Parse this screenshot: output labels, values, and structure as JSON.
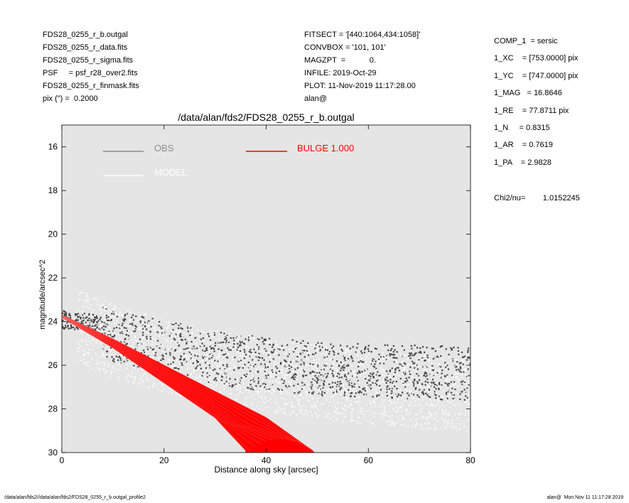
{
  "header_left": [
    "FDS28_0255_r_b.outgal",
    "FDS28_0255_r_data.fits",
    "FDS28_0255_r_sigma.fits",
    "PSF     = psf_r28_over2.fits",
    "FDS28_0255_r_finmask.fits",
    "pix (\") =  0.2000"
  ],
  "header_mid": [
    "FITSECT = '[440:1064,434:1058]'",
    "CONVBOX = '101, 101'",
    "MAGZPT  =           0.",
    "INFILE: 2019-Oct-29",
    "PLOT: 11-Nov-2019 11:17:28.00",
    "alan@"
  ],
  "header_right": [
    "COMP_1  = sersic",
    "1_XC    = [753.0000] pix",
    "1_YC    = [747.0000] pix",
    "1_MAG   = 16.8646",
    "1_RE    = 77.8711 pix",
    "1_N     = 0.8315",
    "1_AR    = 0.7619",
    "1_PA    = 2.9828"
  ],
  "chi2": "Chi2/nu=        1.0152245",
  "footer_left": "/data/alan/fds2//data/alan/fds2/FDS28_0255_r_b.outgal_profile2",
  "footer_right": "alan@  Mon Nov 11 11:17:28 2019",
  "colors": {
    "background_plot": "#e5e5e5",
    "obs": "#444444",
    "obs_legend": "#8c8c8c",
    "model": "#ffffff",
    "bulge": "#ff0000"
  },
  "chart_data": {
    "type": "scatter",
    "title": "/data/alan/fds2/FDS28_0255_r_b.outgal",
    "xlabel": "Distance along sky [arcsec]",
    "ylabel": "magnitude/arcsec^2",
    "xlim": [
      0,
      80
    ],
    "ylim": [
      30,
      15
    ],
    "y_inverted": true,
    "xticks": [
      0,
      20,
      40,
      60,
      80
    ],
    "yticks": [
      16,
      18,
      20,
      22,
      24,
      26,
      28,
      30
    ],
    "grid": false,
    "legend_placement": "top-left",
    "legend": [
      {
        "label": "OBS",
        "color": "#8c8c8c"
      },
      {
        "label": "MODEL",
        "color": "#ffffff"
      },
      {
        "label": "BULGE  1.000",
        "color": "#ff0000"
      }
    ],
    "series": [
      {
        "name": "OBS",
        "kind": "scatter",
        "description_points": [
          [
            0,
            23.8
          ],
          [
            5,
            23.9
          ],
          [
            10,
            24.3
          ],
          [
            20,
            24.8
          ],
          [
            30,
            25.3
          ],
          [
            40,
            25.6
          ],
          [
            50,
            25.8
          ],
          [
            60,
            25.9
          ],
          [
            80,
            26.0
          ]
        ],
        "spread": 1.9
      },
      {
        "name": "MODEL",
        "kind": "scatter",
        "description_points": [
          [
            0,
            23.8
          ],
          [
            5,
            24.2
          ],
          [
            10,
            24.7
          ],
          [
            20,
            25.4
          ],
          [
            30,
            25.9
          ],
          [
            40,
            26.3
          ],
          [
            50,
            26.6
          ],
          [
            60,
            26.9
          ],
          [
            80,
            27.2
          ]
        ],
        "spread": 2.4
      },
      {
        "name": "BULGE  1.000",
        "kind": "band",
        "upper": [
          [
            0,
            23.7
          ],
          [
            10,
            24.8
          ],
          [
            20,
            26.0
          ],
          [
            30,
            27.2
          ],
          [
            40,
            28.4
          ],
          [
            49,
            29.9
          ]
        ],
        "lower": [
          [
            0,
            23.8
          ],
          [
            10,
            25.2
          ],
          [
            20,
            26.8
          ],
          [
            30,
            28.4
          ],
          [
            36,
            29.9
          ]
        ]
      }
    ]
  }
}
